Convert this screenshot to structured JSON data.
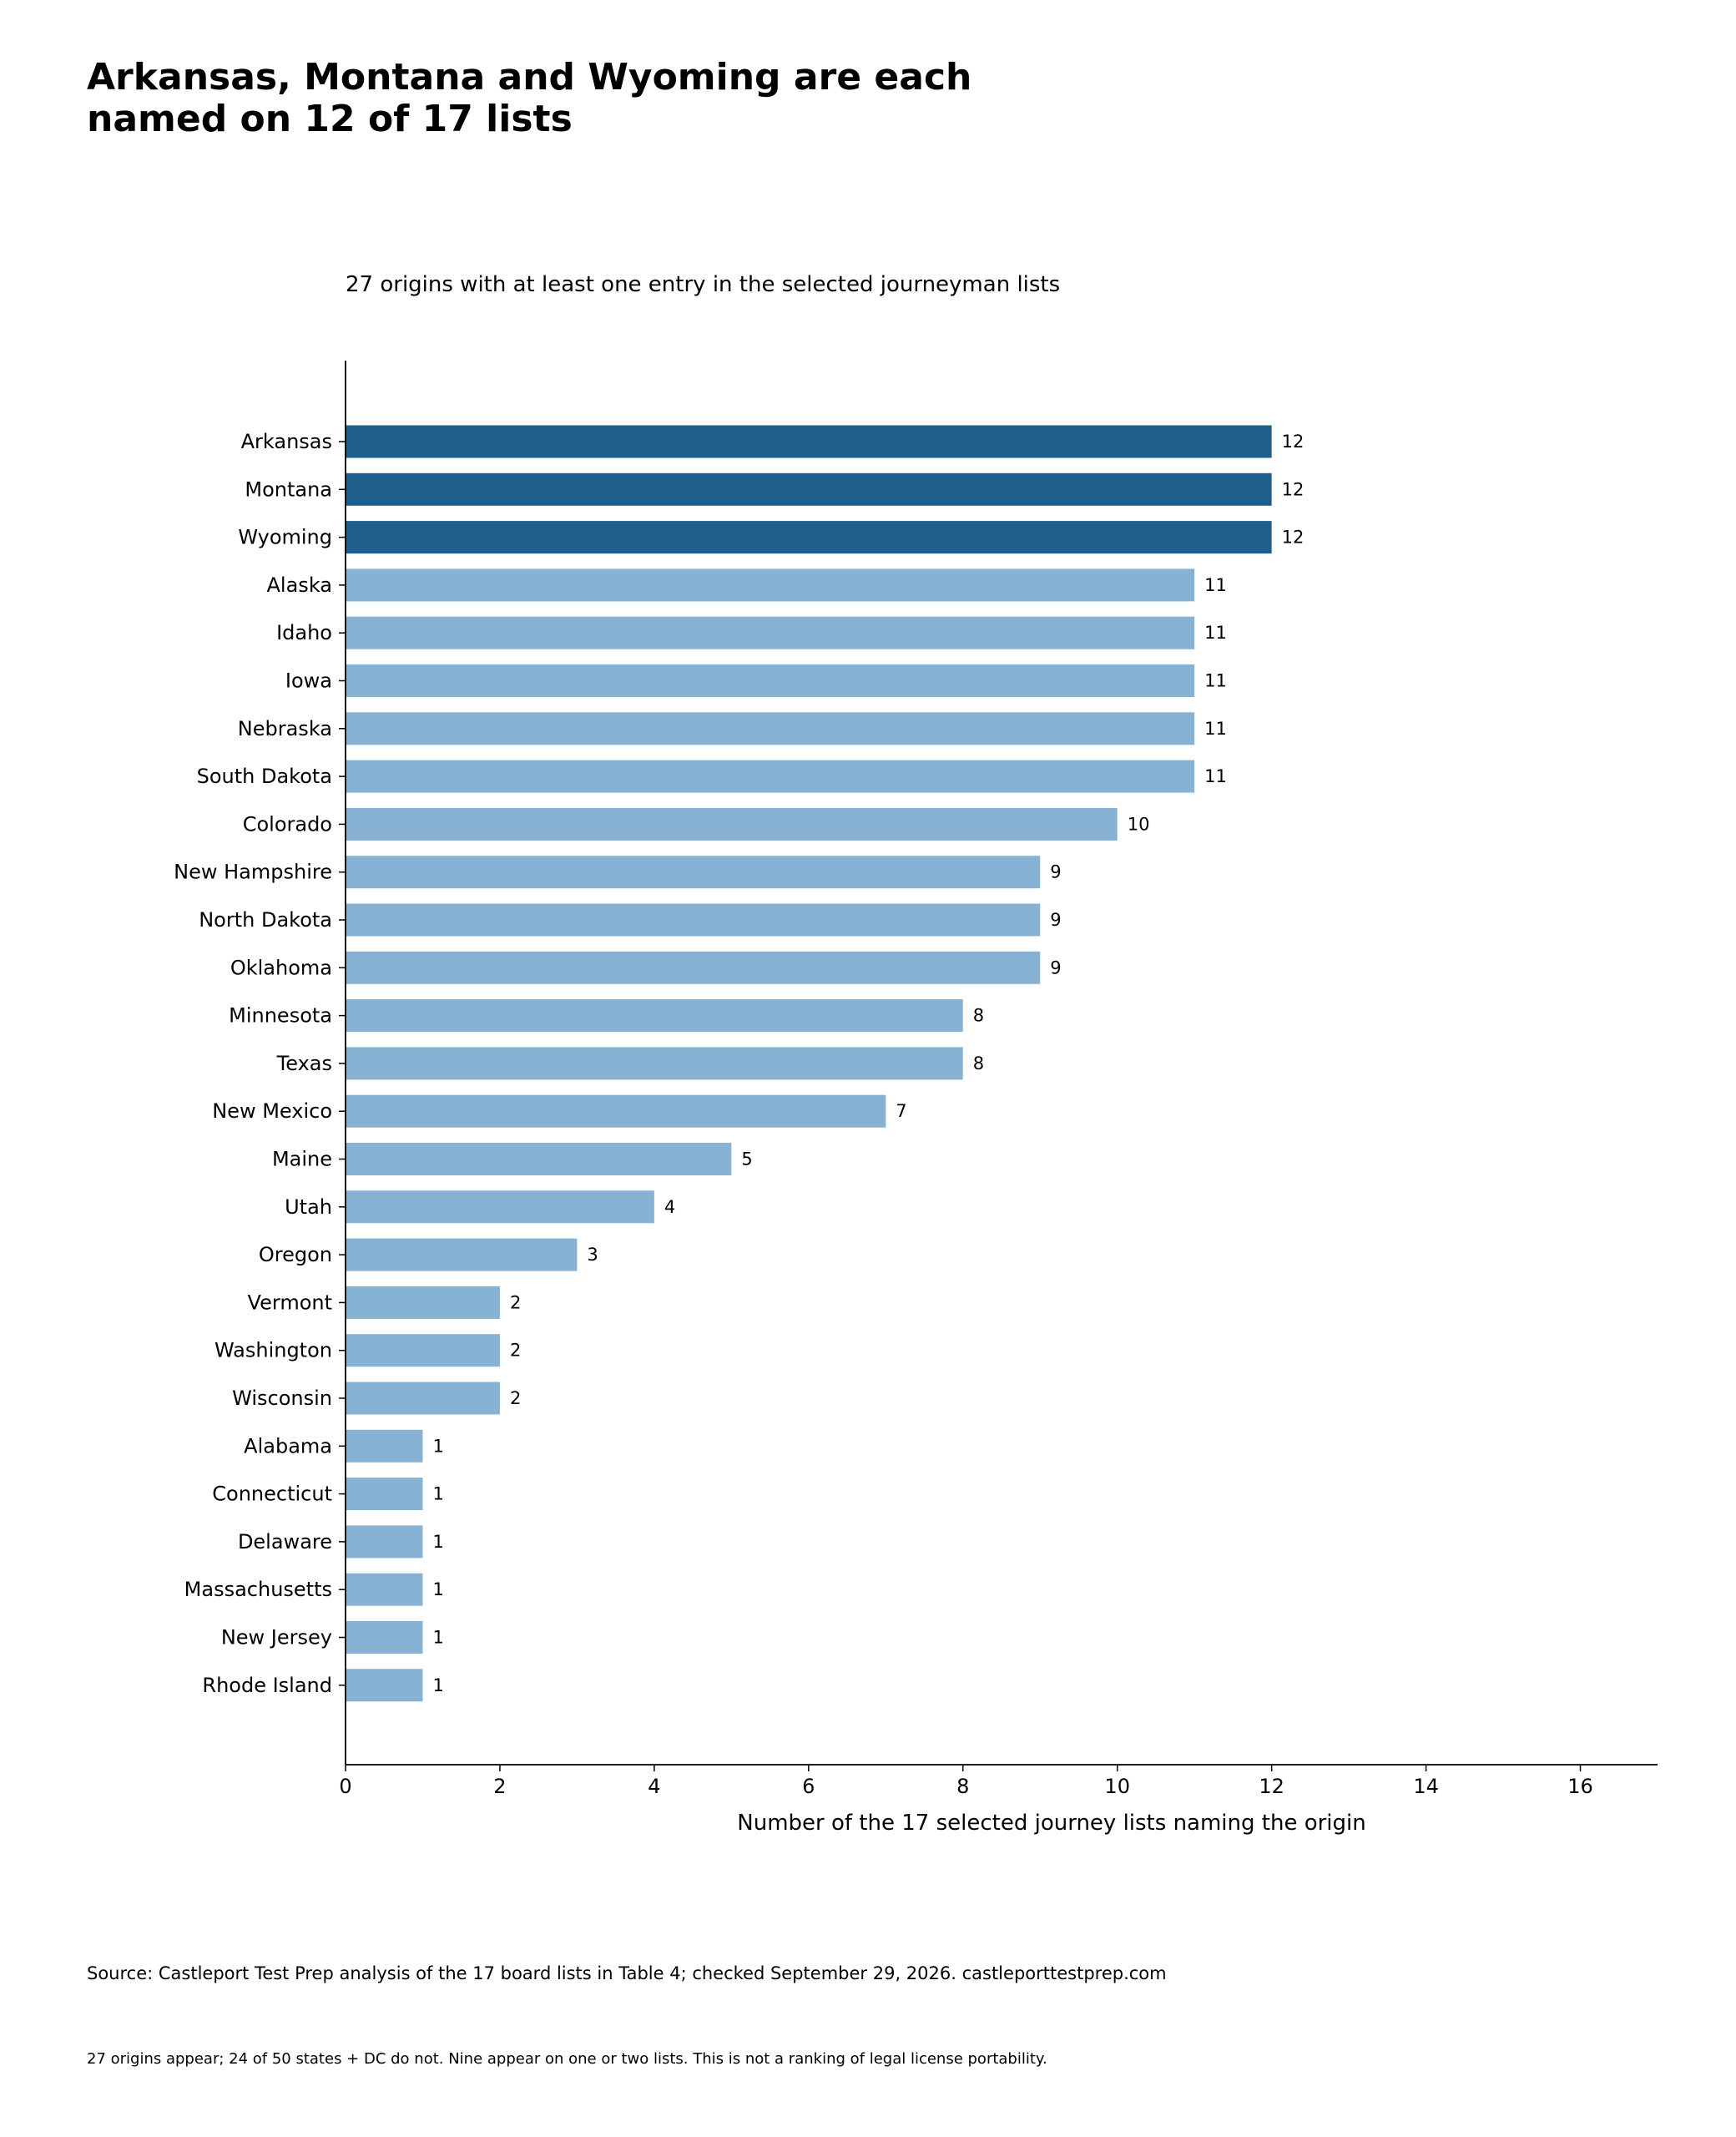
{
  "header": {
    "title_lines": [
      "Arkansas, Montana and Wyoming are each",
      "named on 12 of 17 lists"
    ],
    "subtitle": "27 origins with at least one entry in the selected journeyman lists"
  },
  "footer": {
    "source": "Source: Castleport Test Prep analysis of the 17 board lists in Table 4; checked September 29, 2026. castleporttestprep.com",
    "note": "27 origins appear; 24 of 50 states + DC do not. Nine appear on one or two lists. This is not a ranking of legal license portability."
  },
  "colors": {
    "highlight": "#1f5f8b",
    "base": "#87b2d3",
    "axis": "#000000"
  },
  "chart_data": {
    "type": "bar",
    "orientation": "horizontal",
    "title": "Arkansas, Montana and Wyoming are each named on 12 of 17 lists",
    "subtitle": "27 origins with at least one entry in the selected journeyman lists",
    "xlabel": "Number of the 17 selected journey lists naming the origin",
    "ylabel": "",
    "xlim": [
      0,
      17
    ],
    "xticks": [
      0,
      2,
      4,
      6,
      8,
      10,
      12,
      14,
      16
    ],
    "grid": false,
    "data_labels": true,
    "highlighted": [
      "Arkansas",
      "Montana",
      "Wyoming"
    ],
    "categories": [
      "Arkansas",
      "Montana",
      "Wyoming",
      "Alaska",
      "Idaho",
      "Iowa",
      "Nebraska",
      "South Dakota",
      "Colorado",
      "New Hampshire",
      "North Dakota",
      "Oklahoma",
      "Minnesota",
      "Texas",
      "New Mexico",
      "Maine",
      "Utah",
      "Oregon",
      "Vermont",
      "Washington",
      "Wisconsin",
      "Alabama",
      "Connecticut",
      "Delaware",
      "Massachusetts",
      "New Jersey",
      "Rhode Island"
    ],
    "values": [
      12,
      12,
      12,
      11,
      11,
      11,
      11,
      11,
      10,
      9,
      9,
      9,
      8,
      8,
      7,
      5,
      4,
      3,
      2,
      2,
      2,
      1,
      1,
      1,
      1,
      1,
      1
    ]
  }
}
